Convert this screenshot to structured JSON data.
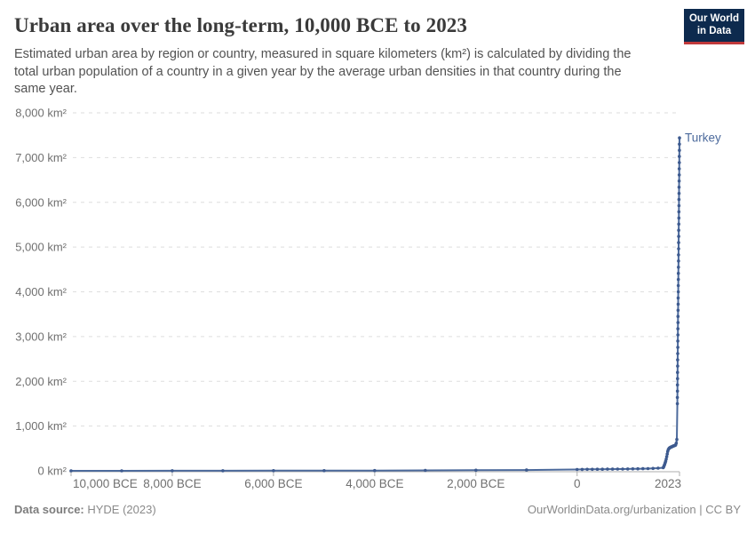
{
  "header": {
    "title": "Urban area over the long-term, 10,000 BCE to 2023",
    "subtitle": "Estimated urban area by region or country, measured in square kilometers (km²) is calculated by dividing the total urban population of a country in a given year by the average urban densities in that country during the same year.",
    "logo_line1": "Our World",
    "logo_line2": "in Data"
  },
  "footer": {
    "source_label": "Data source:",
    "source_value": " HYDE (2023)",
    "link": "OurWorldinData.org/urbanization | CC BY"
  },
  "colors": {
    "line": "#4c6a9c",
    "point": "#3d5a8f",
    "entity_label": "#4c6a9c",
    "grid": "#dedede",
    "axis": "#adadad",
    "tick_label": "#707070",
    "logo_bg": "#0d2a4e",
    "logo_stripe": "#c0393b"
  },
  "chart_data": {
    "type": "line",
    "title": "Urban area over the long-term, 10,000 BCE to 2023",
    "unit": "km²",
    "xlim": [
      -10000,
      2023
    ],
    "ylim": [
      0,
      8000
    ],
    "grid": "horizontal-dashed",
    "legend_position": "end-of-line-label",
    "x_ticks": [
      {
        "year": -10000,
        "label": "10,000 BCE"
      },
      {
        "year": -8000,
        "label": "8,000 BCE"
      },
      {
        "year": -6000,
        "label": "6,000 BCE"
      },
      {
        "year": -4000,
        "label": "4,000 BCE"
      },
      {
        "year": -2000,
        "label": "2,000 BCE"
      },
      {
        "year": 0,
        "label": "0"
      },
      {
        "year": 2023,
        "label": "2023"
      }
    ],
    "y_ticks": [
      {
        "value": 0,
        "label": "0 km²"
      },
      {
        "value": 1000,
        "label": "1,000 km²"
      },
      {
        "value": 2000,
        "label": "2,000 km²"
      },
      {
        "value": 3000,
        "label": "3,000 km²"
      },
      {
        "value": 4000,
        "label": "4,000 km²"
      },
      {
        "value": 5000,
        "label": "5,000 km²"
      },
      {
        "value": 6000,
        "label": "6,000 km²"
      },
      {
        "value": 7000,
        "label": "7,000 km²"
      },
      {
        "value": 8000,
        "label": "8,000 km²"
      }
    ],
    "series": [
      {
        "name": "Turkey",
        "points": [
          [
            -10000,
            0
          ],
          [
            -9000,
            0
          ],
          [
            -8000,
            1
          ],
          [
            -7000,
            2
          ],
          [
            -6000,
            3
          ],
          [
            -5000,
            4
          ],
          [
            -4000,
            6
          ],
          [
            -3000,
            9
          ],
          [
            -2000,
            13
          ],
          [
            -1000,
            18
          ],
          [
            0,
            30
          ],
          [
            100,
            32
          ],
          [
            200,
            33
          ],
          [
            300,
            34
          ],
          [
            400,
            35
          ],
          [
            500,
            36
          ],
          [
            600,
            37
          ],
          [
            700,
            38
          ],
          [
            800,
            39
          ],
          [
            900,
            40
          ],
          [
            1000,
            42
          ],
          [
            1100,
            44
          ],
          [
            1200,
            46
          ],
          [
            1300,
            48
          ],
          [
            1400,
            50
          ],
          [
            1500,
            53
          ],
          [
            1600,
            60
          ],
          [
            1700,
            70
          ],
          [
            1710,
            90
          ],
          [
            1720,
            115
          ],
          [
            1730,
            145
          ],
          [
            1740,
            180
          ],
          [
            1750,
            215
          ],
          [
            1760,
            260
          ],
          [
            1770,
            315
          ],
          [
            1780,
            375
          ],
          [
            1790,
            430
          ],
          [
            1800,
            470
          ],
          [
            1810,
            490
          ],
          [
            1820,
            505
          ],
          [
            1830,
            515
          ],
          [
            1840,
            522
          ],
          [
            1850,
            528
          ],
          [
            1860,
            533
          ],
          [
            1870,
            538
          ],
          [
            1880,
            543
          ],
          [
            1890,
            548
          ],
          [
            1900,
            553
          ],
          [
            1910,
            558
          ],
          [
            1920,
            562
          ],
          [
            1930,
            566
          ],
          [
            1940,
            572
          ],
          [
            1950,
            585
          ],
          [
            1960,
            620
          ],
          [
            1970,
            700
          ],
          [
            1980,
            1500
          ],
          [
            1981,
            1640
          ],
          [
            1982,
            1780
          ],
          [
            1983,
            1920
          ],
          [
            1984,
            2060
          ],
          [
            1985,
            2200
          ],
          [
            1986,
            2340
          ],
          [
            1987,
            2480
          ],
          [
            1988,
            2620
          ],
          [
            1989,
            2760
          ],
          [
            1990,
            2900
          ],
          [
            1991,
            3038
          ],
          [
            1992,
            3175
          ],
          [
            1993,
            3313
          ],
          [
            1994,
            3450
          ],
          [
            1995,
            3588
          ],
          [
            1996,
            3725
          ],
          [
            1997,
            3863
          ],
          [
            1998,
            4000
          ],
          [
            1999,
            4138
          ],
          [
            2000,
            4275
          ],
          [
            2001,
            4413
          ],
          [
            2002,
            4550
          ],
          [
            2003,
            4688
          ],
          [
            2004,
            4825
          ],
          [
            2005,
            4963
          ],
          [
            2006,
            5100
          ],
          [
            2007,
            5238
          ],
          [
            2008,
            5375
          ],
          [
            2009,
            5513
          ],
          [
            2010,
            5650
          ],
          [
            2011,
            5788
          ],
          [
            2012,
            5925
          ],
          [
            2013,
            6063
          ],
          [
            2014,
            6200
          ],
          [
            2015,
            6338
          ],
          [
            2016,
            6475
          ],
          [
            2017,
            6613
          ],
          [
            2018,
            6750
          ],
          [
            2019,
            6888
          ],
          [
            2020,
            7025
          ],
          [
            2021,
            7163
          ],
          [
            2022,
            7300
          ],
          [
            2023,
            7440
          ]
        ]
      }
    ]
  }
}
